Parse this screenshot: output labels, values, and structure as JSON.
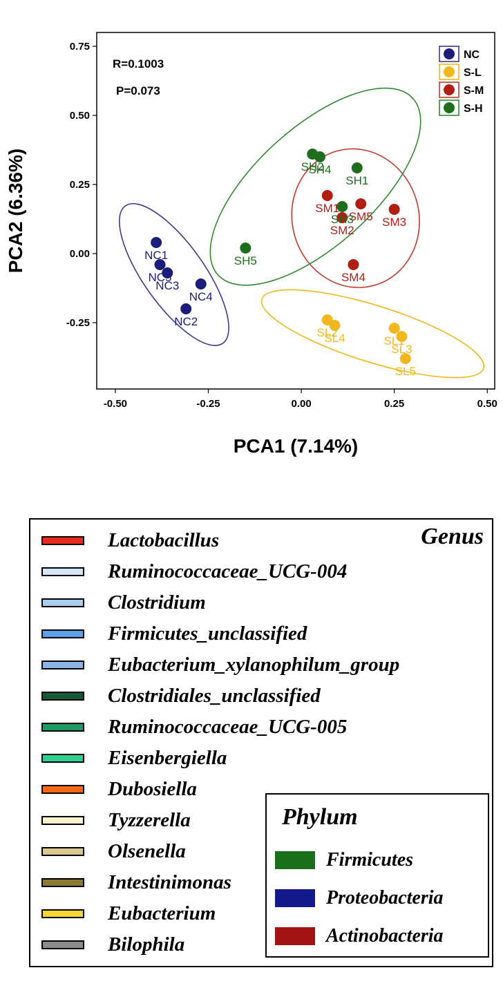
{
  "chart_data": {
    "type": "scatter",
    "xlabel": "PCA1 (7.14%)",
    "ylabel": "PCA2 (6.36%)",
    "xlim": [
      -0.55,
      0.52
    ],
    "ylim": [
      -0.49,
      0.8
    ],
    "xticks": [
      "-0.50",
      "-0.25",
      "0.00",
      "0.25",
      "0.50"
    ],
    "yticks": [
      "0.75",
      "0.50",
      "0.25",
      "0.00",
      "-0.25"
    ],
    "annotations": [
      "R=0.1003",
      "P=0.073"
    ],
    "legend_position": "top-right",
    "grid": false,
    "series": [
      {
        "name": "NC",
        "color": "#1c1c7a",
        "ellipse_color": "#3a3a8f",
        "points": [
          {
            "label": "NC1",
            "x": -0.39,
            "y": 0.04
          },
          {
            "label": "NC5",
            "x": -0.38,
            "y": -0.04
          },
          {
            "label": "NC3",
            "x": -0.36,
            "y": -0.07
          },
          {
            "label": "NC4",
            "x": -0.27,
            "y": -0.11
          },
          {
            "label": "NC2",
            "x": -0.31,
            "y": -0.2
          }
        ]
      },
      {
        "name": "S-L",
        "color": "#f0b81e",
        "ellipse_color": "#f0b81e",
        "points": [
          {
            "label": "SL2",
            "x": 0.07,
            "y": -0.24
          },
          {
            "label": "SL4",
            "x": 0.09,
            "y": -0.26
          },
          {
            "label": "SL1",
            "x": 0.25,
            "y": -0.27
          },
          {
            "label": "SL3",
            "x": 0.27,
            "y": -0.3
          },
          {
            "label": "SL5",
            "x": 0.28,
            "y": -0.38
          }
        ]
      },
      {
        "name": "S-M",
        "color": "#b01e14",
        "ellipse_color": "#c0392b",
        "points": [
          {
            "label": "SM1",
            "x": 0.07,
            "y": 0.21
          },
          {
            "label": "SM5",
            "x": 0.16,
            "y": 0.18
          },
          {
            "label": "SM3",
            "x": 0.25,
            "y": 0.16
          },
          {
            "label": "SM2",
            "x": 0.11,
            "y": 0.13
          },
          {
            "label": "SM4",
            "x": 0.14,
            "y": -0.04
          }
        ]
      },
      {
        "name": "S-H",
        "color": "#1f6e1f",
        "ellipse_color": "#2e8b2e",
        "points": [
          {
            "label": "SH2",
            "x": 0.03,
            "y": 0.36
          },
          {
            "label": "SH4",
            "x": 0.05,
            "y": 0.35
          },
          {
            "label": "SH1",
            "x": 0.15,
            "y": 0.31
          },
          {
            "label": "SH3",
            "x": 0.11,
            "y": 0.17
          },
          {
            "label": "SH5",
            "x": -0.15,
            "y": 0.02
          }
        ]
      }
    ]
  },
  "genus_legend": {
    "title": "Genus",
    "items": [
      {
        "label": "Lactobacillus",
        "color": "#e8291c"
      },
      {
        "label": "Ruminococcaceae_UCG-004",
        "color": "#d6e8f7"
      },
      {
        "label": "Clostridium",
        "color": "#a9cdef"
      },
      {
        "label": "Firmicutes_unclassified",
        "color": "#5aa2ea"
      },
      {
        "label": "Eubacterium_xylanophilum_group",
        "color": "#8db4e6"
      },
      {
        "label": "Clostridiales_unclassified",
        "color": "#145a36"
      },
      {
        "label": "Ruminococcaceae_UCG-005",
        "color": "#1e9a64"
      },
      {
        "label": "Eisenbergiella",
        "color": "#2fd08d"
      },
      {
        "label": "Dubosiella",
        "color": "#f56a12"
      },
      {
        "label": "Tyzzerella",
        "color": "#fbf1cf"
      },
      {
        "label": "Olsenella",
        "color": "#d9c78e"
      },
      {
        "label": "Intestinimonas",
        "color": "#8c7a33"
      },
      {
        "label": "Eubacterium",
        "color": "#f7d63a"
      },
      {
        "label": "Bilophila",
        "color": "#8c8c8c"
      }
    ]
  },
  "phylum_legend": {
    "title": "Phylum",
    "items": [
      {
        "label": "Firmicutes",
        "color": "#1a6e1a"
      },
      {
        "label": "Proteobacteria",
        "color": "#141a8c"
      },
      {
        "label": "Actinobacteria",
        "color": "#a51414"
      }
    ]
  }
}
